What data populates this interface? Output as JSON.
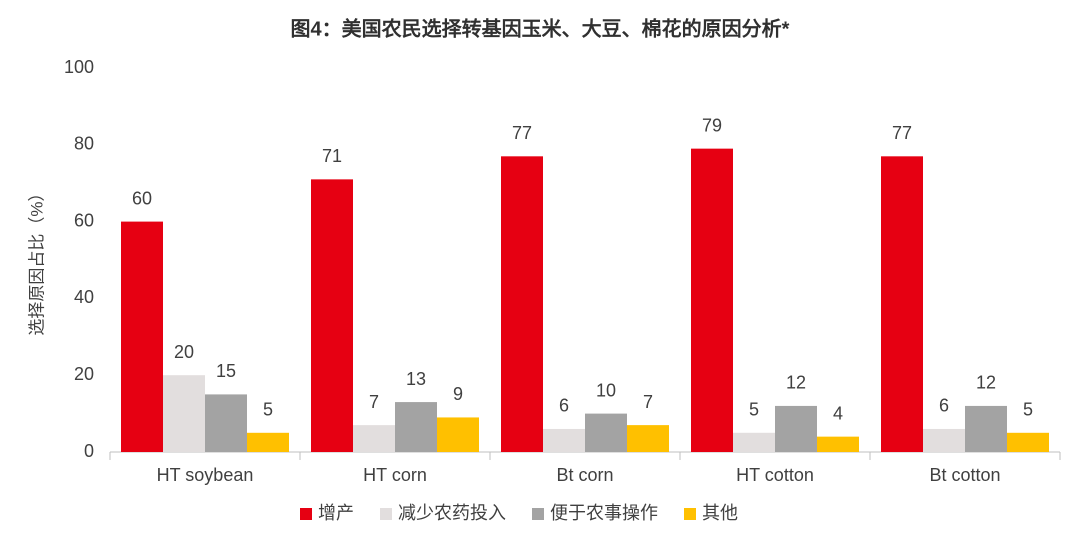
{
  "chart_data": {
    "type": "bar",
    "title": "图4：美国农民选择转基因玉米、大豆、棉花的原因分析*",
    "y_label": "选择原因占比（%）",
    "categories": [
      "HT soybean",
      "HT corn",
      "Bt corn",
      "HT cotton",
      "Bt cotton"
    ],
    "series": [
      {
        "name": "增产",
        "color": "#e60012",
        "values": [
          60,
          71,
          77,
          79,
          77
        ]
      },
      {
        "name": "减少农药投入",
        "color": "#e2dede",
        "values": [
          20,
          7,
          6,
          5,
          6
        ]
      },
      {
        "name": "便于农事操作",
        "color": "#a3a3a3",
        "values": [
          15,
          13,
          10,
          12,
          12
        ]
      },
      {
        "name": "其他",
        "color": "#ffc000",
        "values": [
          5,
          9,
          7,
          4,
          5
        ]
      }
    ],
    "ylim": [
      0,
      100
    ],
    "yticks": [
      0,
      20,
      40,
      60,
      80,
      100
    ],
    "grid": false,
    "legend": "bottom"
  }
}
